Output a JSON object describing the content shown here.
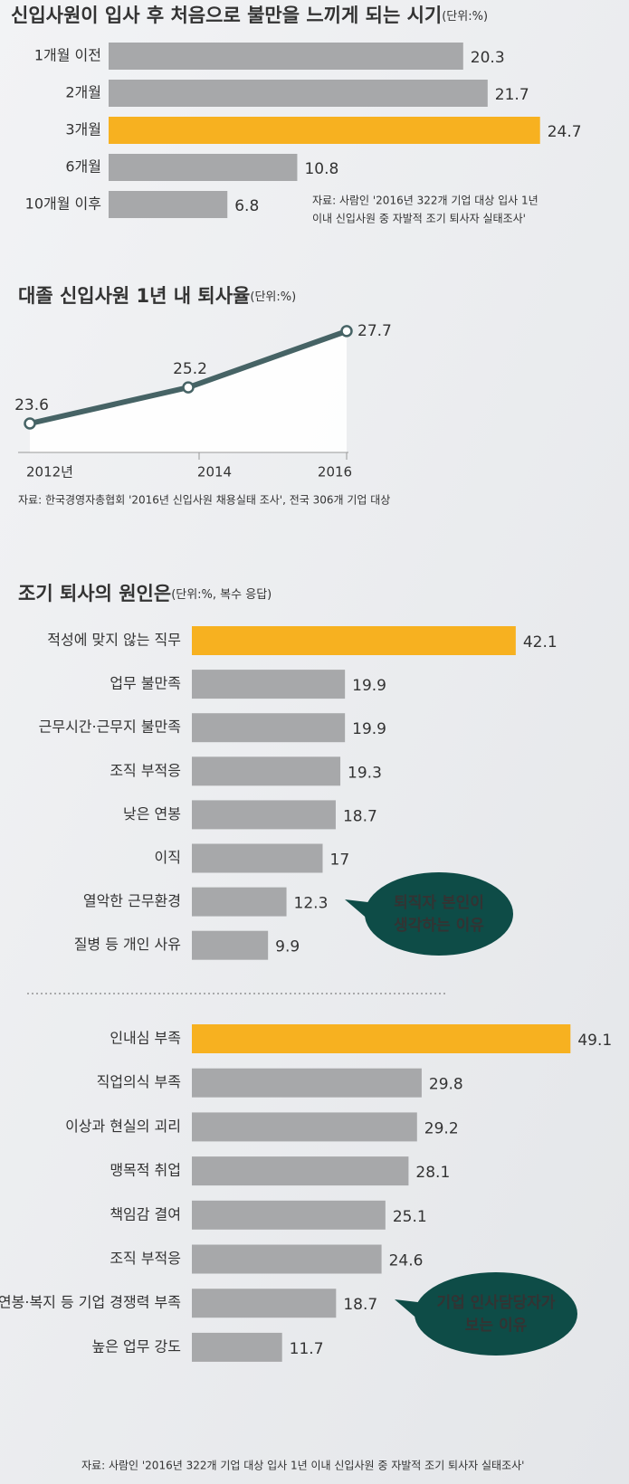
{
  "chart_data": [
    {
      "type": "bar",
      "orientation": "horizontal",
      "title": "신입사원이 입사 후 처음으로 불만을 느끼게 되는 시기",
      "unit": "(단위:%)",
      "categories": [
        "1개월 이전",
        "2개월",
        "3개월",
        "6개월",
        "10개월 이후"
      ],
      "values": [
        20.3,
        21.7,
        24.7,
        10.8,
        6.8
      ],
      "colors": [
        "#a7a8aa",
        "#a7a8aa",
        "#f7b120",
        "#a7a8aa",
        "#a7a8aa"
      ],
      "label_colors": [
        "#333333",
        "#333333",
        "#c4262c",
        "#333333",
        "#333333"
      ],
      "note": [
        "자료: 사람인 '2016년 322개 기업 대상 입사 1년",
        "이내 신입사원 중 자발적 조기 퇴사자 실태조사'"
      ]
    },
    {
      "type": "line",
      "title": "대졸 신입사원 1년 내 퇴사율",
      "unit": "(단위:%)",
      "categories": [
        "2012년",
        "2014",
        "2016"
      ],
      "values": [
        23.6,
        25.2,
        27.7
      ],
      "color": "#466365",
      "label_colors": [
        "#333333",
        "#333333",
        "#c4262c"
      ],
      "note": [
        "자료: 한국경영자총협회 '2016년 신입사원 채용실태 조사', 전국 306개 기업 대상"
      ]
    },
    {
      "type": "bar",
      "orientation": "horizontal",
      "title": "조기 퇴사의 원인은",
      "unit": "(단위:%, 복수 응답)",
      "categories": [
        "적성에 맞지 않는 직무",
        "업무 불만족",
        "근무시간·근무지 불만족",
        "조직 부적응",
        "낮은 연봉",
        "이직",
        "열악한 근무환경",
        "질병 등 개인 사유"
      ],
      "values": [
        42.1,
        19.9,
        19.9,
        19.3,
        18.7,
        17,
        12.3,
        9.9
      ],
      "colors": [
        "#f7b120",
        "#a7a8aa",
        "#a7a8aa",
        "#a7a8aa",
        "#a7a8aa",
        "#a7a8aa",
        "#a7a8aa",
        "#a7a8aa"
      ],
      "label_colors": [
        "#c4262c",
        "#333333",
        "#333333",
        "#333333",
        "#333333",
        "#333333",
        "#333333",
        "#333333"
      ],
      "callout": [
        "퇴직자 본인이",
        "생각하는 이유"
      ]
    },
    {
      "type": "bar",
      "orientation": "horizontal",
      "categories": [
        "인내심 부족",
        "직업의식 부족",
        "이상과 현실의 괴리",
        "맹목적 취업",
        "책임감 결여",
        "조직 부적응",
        "연봉·복지 등 기업 경쟁력 부족",
        "높은 업무 강도"
      ],
      "values": [
        49.1,
        29.8,
        29.2,
        28.1,
        25.1,
        24.6,
        18.7,
        11.7
      ],
      "colors": [
        "#f7b120",
        "#a7a8aa",
        "#a7a8aa",
        "#a7a8aa",
        "#a7a8aa",
        "#a7a8aa",
        "#a7a8aa",
        "#a7a8aa"
      ],
      "label_colors": [
        "#c4262c",
        "#333333",
        "#333333",
        "#333333",
        "#333333",
        "#333333",
        "#333333",
        "#333333"
      ],
      "callout": [
        "기업 인사담당자가",
        "보는 이유"
      ],
      "note": [
        "자료: 사람인 '2016년 322개 기업 대상 입사 1년 이내 신입사원 중 자발적 조기 퇴사자 실태조사'"
      ]
    }
  ]
}
